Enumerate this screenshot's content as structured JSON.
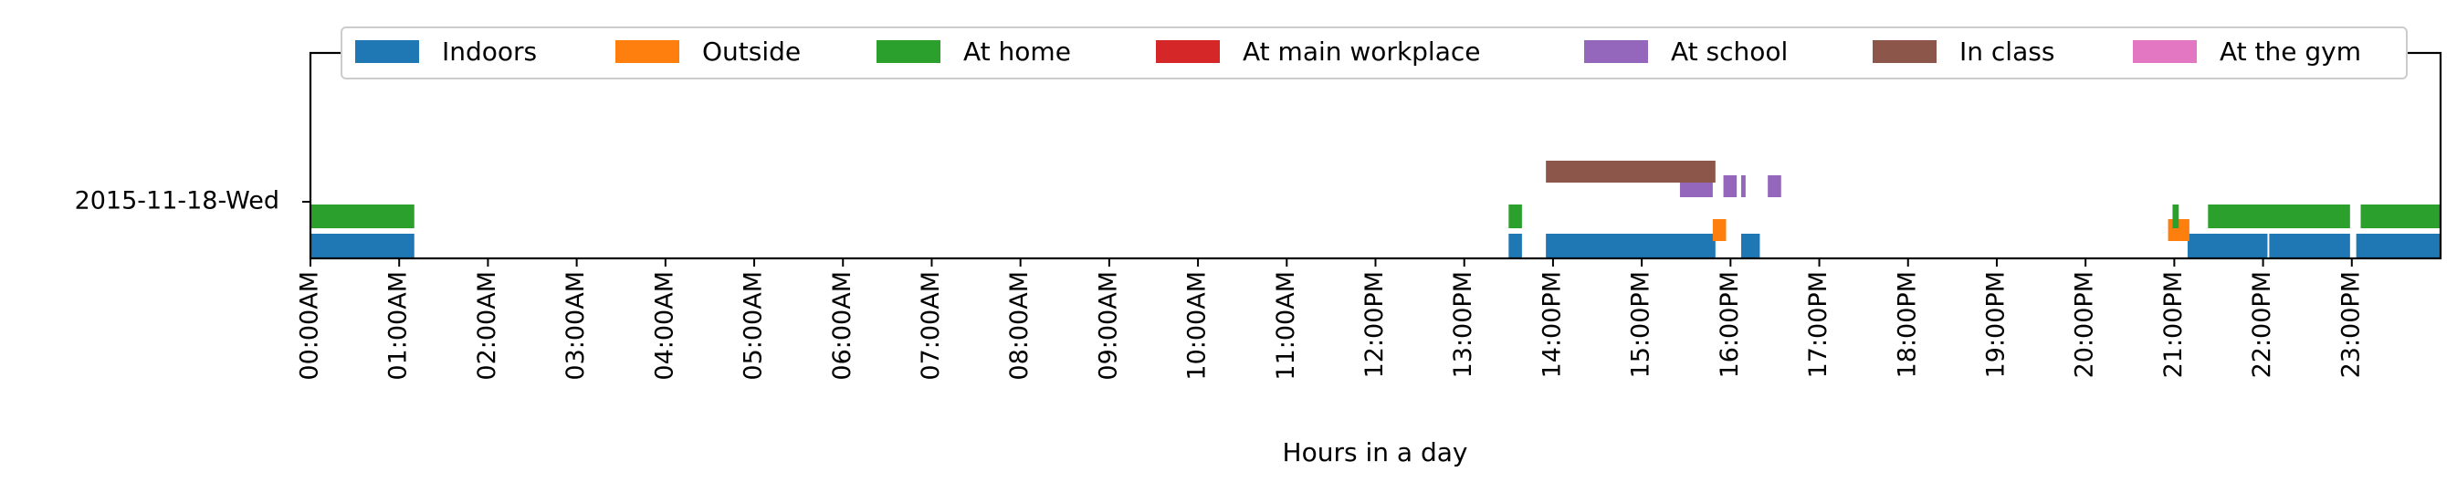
{
  "chart_data": {
    "type": "timeline",
    "xlabel": "Hours in a day",
    "xlim": [
      0,
      24
    ],
    "x_ticks": [
      {
        "value": 0,
        "label": "00:00AM"
      },
      {
        "value": 1,
        "label": "01:00AM"
      },
      {
        "value": 2,
        "label": "02:00AM"
      },
      {
        "value": 3,
        "label": "03:00AM"
      },
      {
        "value": 4,
        "label": "04:00AM"
      },
      {
        "value": 5,
        "label": "05:00AM"
      },
      {
        "value": 6,
        "label": "06:00AM"
      },
      {
        "value": 7,
        "label": "07:00AM"
      },
      {
        "value": 8,
        "label": "08:00AM"
      },
      {
        "value": 9,
        "label": "09:00AM"
      },
      {
        "value": 10,
        "label": "10:00AM"
      },
      {
        "value": 11,
        "label": "11:00AM"
      },
      {
        "value": 12,
        "label": "12:00PM"
      },
      {
        "value": 13,
        "label": "13:00PM"
      },
      {
        "value": 14,
        "label": "14:00PM"
      },
      {
        "value": 15,
        "label": "15:00PM"
      },
      {
        "value": 16,
        "label": "16:00PM"
      },
      {
        "value": 17,
        "label": "17:00PM"
      },
      {
        "value": 18,
        "label": "18:00PM"
      },
      {
        "value": 19,
        "label": "19:00PM"
      },
      {
        "value": 20,
        "label": "20:00PM"
      },
      {
        "value": 21,
        "label": "21:00PM"
      },
      {
        "value": 22,
        "label": "22:00PM"
      },
      {
        "value": 23,
        "label": "23:00PM"
      }
    ],
    "y_label": "2015-11-18-Wed",
    "legend_position": "top",
    "series": [
      {
        "name": "Indoors",
        "color": "#1f77b4",
        "intervals": [
          [
            0,
            1.17
          ],
          [
            13.5,
            13.65
          ],
          [
            13.92,
            15.83
          ],
          [
            16.12,
            16.33
          ],
          [
            21.15,
            22.05
          ],
          [
            22.07,
            22.98
          ],
          [
            23.05,
            24
          ]
        ]
      },
      {
        "name": "Outside",
        "color": "#ff7f0e",
        "intervals": [
          [
            15.8,
            15.95
          ],
          [
            20.93,
            21.17
          ]
        ]
      },
      {
        "name": "At home",
        "color": "#2ca02c",
        "intervals": [
          [
            0,
            1.17
          ],
          [
            13.5,
            13.65
          ],
          [
            20.98,
            21.05
          ],
          [
            21.38,
            22.98
          ],
          [
            23.1,
            24
          ]
        ]
      },
      {
        "name": "At main workplace",
        "color": "#d62728",
        "intervals": []
      },
      {
        "name": "At school",
        "color": "#9467bd",
        "intervals": [
          [
            15.43,
            15.8
          ],
          [
            15.92,
            16.07
          ],
          [
            16.12,
            16.17
          ],
          [
            16.42,
            16.57
          ]
        ]
      },
      {
        "name": "In class",
        "color": "#8c564b",
        "intervals": [
          [
            13.92,
            15.83
          ]
        ]
      },
      {
        "name": "At the gym",
        "color": "#e377c2",
        "intervals": []
      }
    ]
  }
}
